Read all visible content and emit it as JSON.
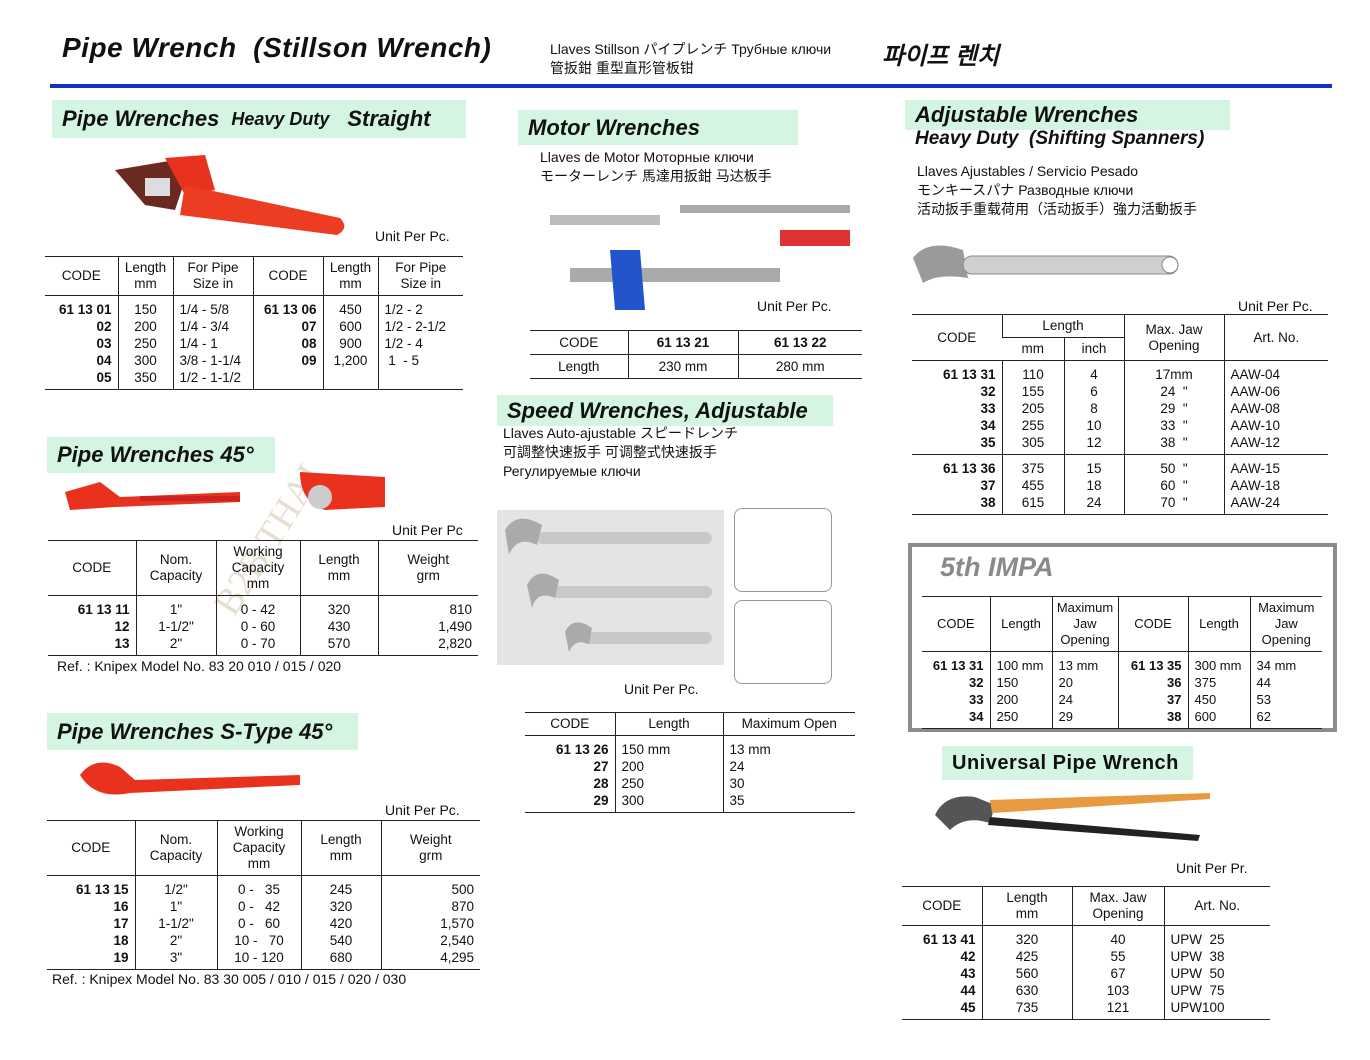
{
  "header": {
    "title": "Pipe Wrench  (Stillson Wrench)",
    "langs": "Llaves Stillson  パイプレンチ  Трубные ключи\n管扳鉗   重型直形管板钳",
    "korean": "파이프 렌치",
    "rule_color": "#1030c8"
  },
  "colors": {
    "section_bg": "#d5f5e3",
    "wrench_red": "#e8321e",
    "impa_gray": "#8a8a8a"
  },
  "watermark": "B2B THAI",
  "pipe_heavy": {
    "title": "Pipe Wrenches",
    "subtitle": "Heavy Duty",
    "title2": "Straight",
    "unit": "Unit Per Pc.",
    "table": {
      "header": [
        [
          "CODE",
          "Length\nmm",
          "For Pipe\nSize in",
          "CODE",
          "Length\nmm",
          "For Pipe\nSize in"
        ]
      ],
      "groups": [
        [
          [
            "61 13 01",
            "02",
            "03",
            "04",
            "05"
          ],
          [
            "150",
            "200",
            "250",
            "300",
            "350"
          ],
          [
            "1/4 - 5/8",
            "1/4 - 3/4",
            "1/4 - 1",
            "3/8 - 1-1/4",
            "1/2 - 1-1/2"
          ],
          [
            "61 13 06",
            "07",
            "08",
            "09"
          ],
          [
            "450",
            "600",
            "900",
            "1,200"
          ],
          [
            "1/2 - 2",
            "1/2 - 2-1/2",
            "1/2 - 4",
            " 1  - 5"
          ]
        ]
      ]
    }
  },
  "pipe_45": {
    "title": "Pipe Wrenches 45°",
    "unit": "Unit Per Pc",
    "table": {
      "header": [
        [
          "CODE",
          "Nom.\nCapacity",
          "Working\nCapacity\nmm",
          "Length\nmm",
          "Weight\ngrm"
        ]
      ],
      "groups": [
        [
          [
            "61 13 11",
            "12",
            "13"
          ],
          [
            "1\"",
            "1-1/2\"",
            "2\""
          ],
          [
            "0 - 42",
            "0 - 60",
            "0 - 70"
          ],
          [
            "320",
            "430",
            "570"
          ],
          [
            "810",
            "1,490",
            "2,820"
          ]
        ]
      ]
    },
    "ref": "Ref. : Knipex Model No. 83 20 010 / 015 / 020"
  },
  "pipe_s45": {
    "title": "Pipe Wrenches S-Type 45°",
    "unit": "Unit Per Pc.",
    "table": {
      "header": [
        [
          "CODE",
          "Nom.\nCapacity",
          "Working\nCapacity\nmm",
          "Length\nmm",
          "Weight\ngrm"
        ]
      ],
      "groups": [
        [
          [
            "61 13 15",
            "16",
            "17",
            "18",
            "19"
          ],
          [
            "1/2\"",
            "1\"",
            "1-1/2\"",
            "2\"",
            "3\""
          ],
          [
            "0 -   35",
            "0 -   42",
            "0 -   60",
            "10 -   70",
            "10 - 120"
          ],
          [
            "245",
            "320",
            "420",
            "540",
            "680"
          ],
          [
            "500",
            "870",
            "1,570",
            "2,540",
            "4,295"
          ]
        ]
      ]
    },
    "ref": "Ref. : Knipex Model No. 83 30 005 / 010 / 015 / 020 / 030"
  },
  "motor": {
    "title": "Motor Wrenches",
    "langs": "Llaves de Motor  Моторные ключи\nモーターレンチ  馬達用扳鉗   马达板手",
    "unit": "Unit Per Pc.",
    "rows": [
      [
        "CODE",
        "61 13 21",
        "61 13 22"
      ],
      [
        "Length",
        "230 mm",
        "280 mm"
      ]
    ]
  },
  "speed": {
    "title": "Speed Wrenches, Adjustable",
    "langs": "Llaves Auto-ajustable  スピードレンチ\n可調整快速扳手  可调整式快速扳手\nРегулируемые ключи",
    "unit": "Unit Per Pc.",
    "table": {
      "header": [
        [
          "CODE",
          "Length",
          "Maximum Open"
        ]
      ],
      "groups": [
        [
          [
            "61 13 26",
            "27",
            "28",
            "29"
          ],
          [
            "150 mm",
            "200",
            "250",
            "300"
          ],
          [
            "13 mm",
            "24",
            "30",
            "35"
          ]
        ]
      ]
    }
  },
  "adjustable": {
    "title": "Adjustable Wrenches",
    "subtitle": "Heavy Duty  (Shifting Spanners)",
    "langs": "Llaves Ajustables / Servicio Pesado\nモンキースパナ  Разводные ключи\n活动扳手重载荷用（活动扳手）強力活動扳手",
    "unit": "Unit Per Pc.",
    "table": {
      "header": [
        [
          "CODE",
          {
            "text": "Length",
            "colspan": 2
          },
          "Max. Jaw\nOpening",
          "Art. No."
        ],
        [
          "mm",
          "inch"
        ]
      ],
      "groups": [
        [
          [
            "61 13 31",
            "32",
            "33",
            "34",
            "35"
          ],
          [
            "110",
            "155",
            "205",
            "255",
            "305"
          ],
          [
            "4",
            "6",
            "8",
            "10",
            "12"
          ],
          [
            "17mm",
            "24  \"",
            "29  \"",
            "33  \"",
            "38  \""
          ],
          [
            "AAW-04",
            "AAW-06",
            "AAW-08",
            "AAW-10",
            "AAW-12"
          ]
        ],
        [
          [
            "61 13 36",
            "37",
            "38"
          ],
          [
            "375",
            "455",
            "615"
          ],
          [
            "15",
            "18",
            "24"
          ],
          [
            "50  \"",
            "60  \"",
            "70  \""
          ],
          [
            "AAW-15",
            "AAW-18",
            "AAW-24"
          ]
        ]
      ]
    }
  },
  "impa": {
    "title": "5th IMPA",
    "table": {
      "header": [
        [
          "CODE",
          "Length",
          "Maximum\nJaw\nOpening",
          "CODE",
          "Length",
          "Maximum\nJaw\nOpening"
        ]
      ],
      "groups": [
        [
          [
            "61 13 31",
            "32",
            "33",
            "34"
          ],
          [
            "100 mm",
            "150",
            "200",
            "250"
          ],
          [
            "13 mm",
            "20",
            "24",
            "29"
          ],
          [
            "61 13 35",
            "36",
            "37",
            "38"
          ],
          [
            "300 mm",
            "375",
            "450",
            "600"
          ],
          [
            "34 mm",
            "44",
            "53",
            "62"
          ]
        ]
      ]
    }
  },
  "universal": {
    "title": "Universal Pipe Wrench",
    "unit": "Unit Per Pr.",
    "table": {
      "header": [
        [
          "CODE",
          "Length\nmm",
          "Max. Jaw\nOpening",
          "Art. No."
        ]
      ],
      "groups": [
        [
          [
            "61 13 41",
            "42",
            "43",
            "44",
            "45"
          ],
          [
            "320",
            "425",
            "560",
            "630",
            "735"
          ],
          [
            "40",
            "55",
            "67",
            "103",
            "121"
          ],
          [
            "UPW  25",
            "UPW  38",
            "UPW  50",
            "UPW  75",
            "UPW100"
          ]
        ]
      ]
    }
  }
}
